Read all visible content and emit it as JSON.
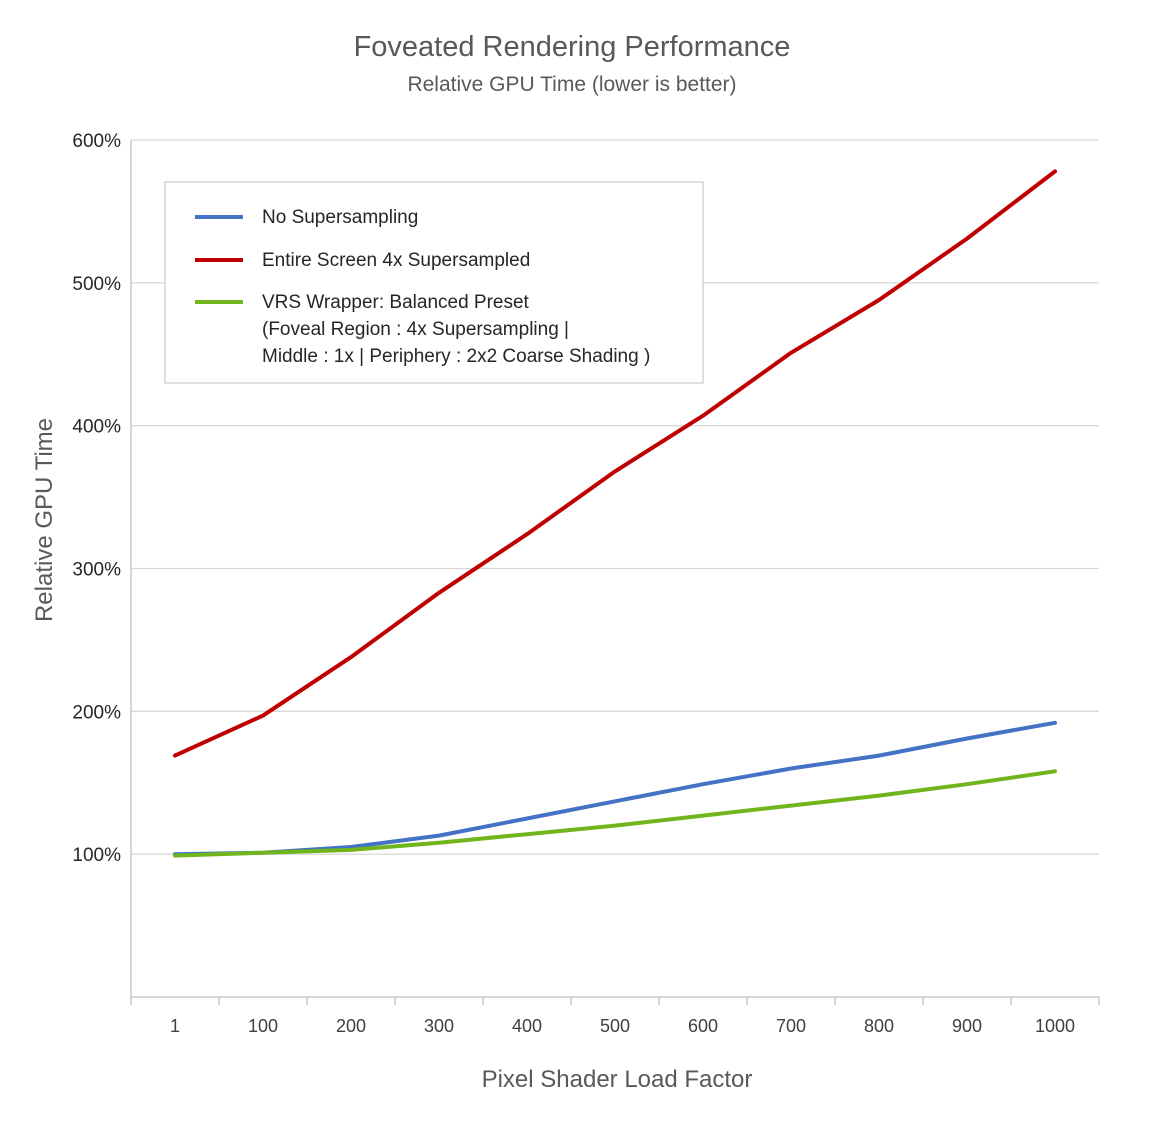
{
  "chart_data": {
    "type": "line",
    "title": "Foveated Rendering Performance",
    "subtitle": "Relative GPU Time (lower is better)",
    "xlabel": "Pixel Shader Load Factor",
    "ylabel": "Relative GPU Time",
    "x": [
      1,
      100,
      200,
      300,
      400,
      500,
      600,
      700,
      800,
      900,
      1000
    ],
    "x_tick_labels": [
      "1",
      "100",
      "200",
      "300",
      "400",
      "500",
      "600",
      "700",
      "800",
      "900",
      "1000"
    ],
    "y_ticks": [
      100,
      200,
      300,
      400,
      500,
      600
    ],
    "y_tick_labels": [
      "100%",
      "200%",
      "300%",
      "400%",
      "500%",
      "600%"
    ],
    "ylim": [
      0,
      600
    ],
    "grid": "horizontal",
    "legend_position": "top-left",
    "series": [
      {
        "name": "No Supersampling",
        "color": "#4472C4",
        "values": [
          100,
          101,
          105,
          113,
          125,
          137,
          149,
          160,
          169,
          181,
          192
        ]
      },
      {
        "name": "Entire Screen 4x Supersampled",
        "color": "#C00000",
        "values": [
          169,
          197,
          238,
          283,
          324,
          368,
          407,
          451,
          488,
          531,
          578
        ]
      },
      {
        "name": "VRS Wrapper: Balanced Preset",
        "name_lines": [
          "VRS Wrapper: Balanced Preset",
          "(Foveal Region : 4x Supersampling |",
          "Middle : 1x | Periphery : 2x2 Coarse Shading )"
        ],
        "color": "#70B51C",
        "values": [
          99,
          101,
          103,
          108,
          114,
          120,
          127,
          134,
          141,
          149,
          158
        ]
      }
    ]
  }
}
